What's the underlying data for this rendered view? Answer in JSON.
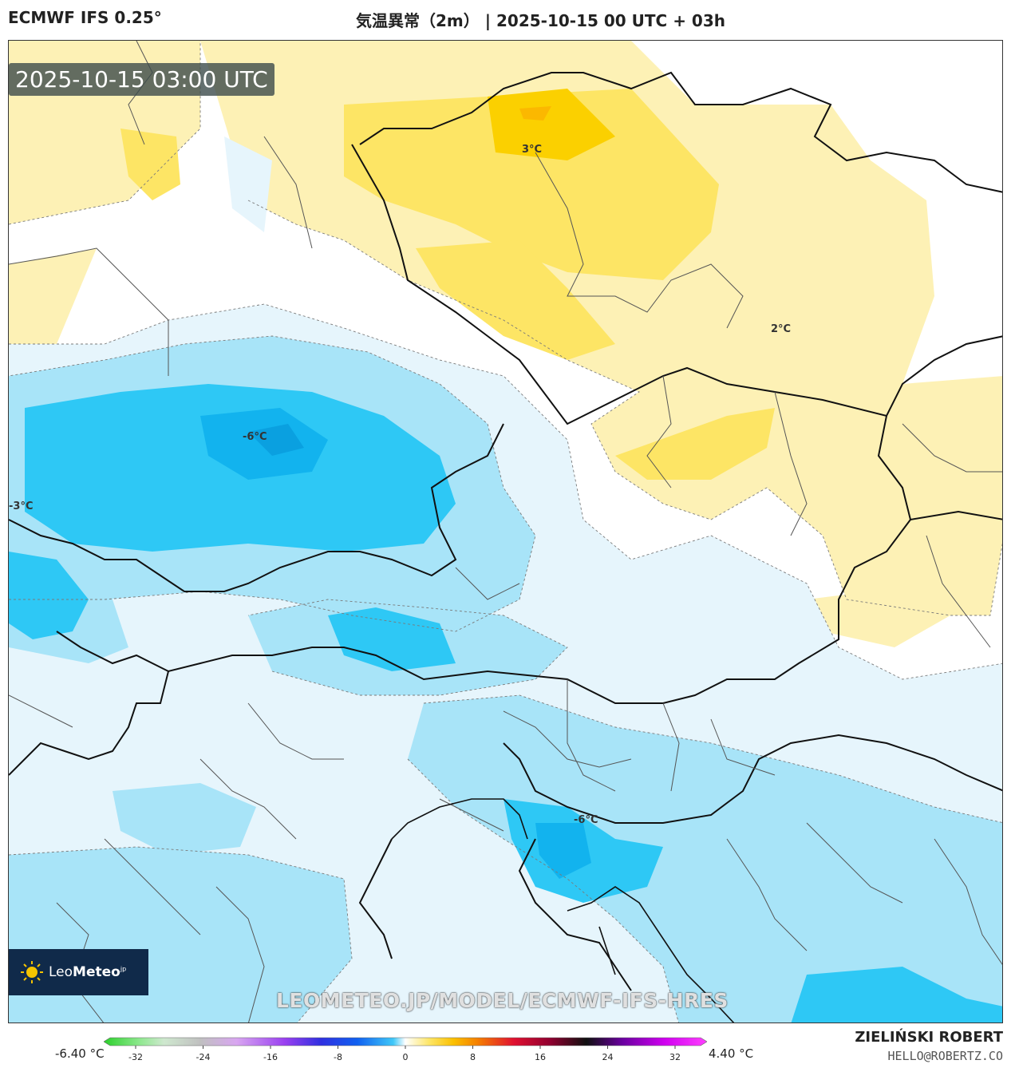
{
  "header": {
    "model": "ECMWF IFS 0.25°",
    "run": "気温異常（2m） | 2025-10-15 00 UTC + 03h"
  },
  "map": {
    "valid_time": "2025-10-15 03:00 UTC",
    "contour_labels": [
      "3°C",
      "2°C",
      "-6°C",
      "-3°C",
      "-6°C"
    ],
    "watermark": "LEOMETEO.JP/MODEL/ECMWF-IFS-HRES",
    "logo": {
      "brand_light": "Leo",
      "brand_bold": "Meteo",
      "brand_suffix": "jp"
    }
  },
  "colorbar": {
    "min_label": "-6.40 °C",
    "max_label": "4.40 °C",
    "ticks": [
      "-32",
      "-24",
      "-16",
      "-8",
      "0",
      "8",
      "16",
      "24",
      "32"
    ]
  },
  "footer": {
    "author": "ZIELIŃSKI ROBERT",
    "email": "HELLO@ROBERTZ.CO"
  },
  "colors": {
    "warm_light": "#fdf1b5",
    "warm_mid": "#fde565",
    "warm_strong": "#fbd000",
    "cold_light": "#e6f5fc",
    "cold_mid": "#a8e4f8",
    "cold_strong": "#2ec8f5",
    "cold_deep": "#12b3ee"
  }
}
